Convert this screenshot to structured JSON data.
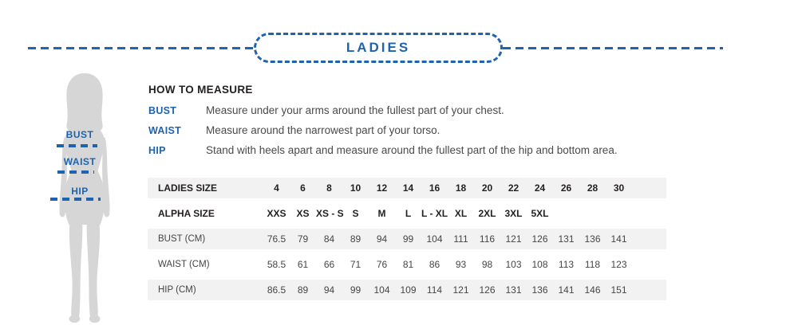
{
  "colors": {
    "accent_blue": "#1f63ae",
    "silhouette_gray": "#d6d6d6",
    "row_stripe_gray": "#f2f2f2",
    "heading_black": "#231f20",
    "body_gray": "#4a4a4a"
  },
  "divider": {
    "label": "LADIES"
  },
  "figure": {
    "silhouette_icon": "woman-silhouette-icon",
    "bust_label": "BUST",
    "waist_label": "WAIST",
    "hip_label": "HIP"
  },
  "how_to_measure": {
    "heading": "HOW TO MEASURE",
    "items": [
      {
        "label": "BUST",
        "text": "Measure under your arms around the fullest part of your chest."
      },
      {
        "label": "WAIST",
        "text": "Measure around the narrowest part of your torso."
      },
      {
        "label": "HIP",
        "text": "Stand with heels apart and measure around the fullest part of the hip and bottom area."
      }
    ]
  },
  "chart_data": {
    "type": "table",
    "title": "LADIES",
    "header_row": {
      "label": "LADIES SIZE",
      "values": [
        "4",
        "6",
        "8",
        "10",
        "12",
        "14",
        "16",
        "18",
        "20",
        "22",
        "24",
        "26",
        "28",
        "30"
      ]
    },
    "rows": [
      {
        "label": "ALPHA SIZE",
        "bold": true,
        "values": [
          "XXS",
          "XS",
          "XS - S",
          "S",
          "M",
          "L",
          "L - XL",
          "XL",
          "2XL",
          "3XL",
          "5XL",
          "",
          "",
          ""
        ]
      },
      {
        "label": "BUST (CM)",
        "bold": false,
        "values": [
          "76.5",
          "79",
          "84",
          "89",
          "94",
          "99",
          "104",
          "111",
          "116",
          "121",
          "126",
          "131",
          "136",
          "141"
        ]
      },
      {
        "label": "WAIST (CM)",
        "bold": false,
        "values": [
          "58.5",
          "61",
          "66",
          "71",
          "76",
          "81",
          "86",
          "93",
          "98",
          "103",
          "108",
          "113",
          "118",
          "123"
        ]
      },
      {
        "label": "HIP (CM)",
        "bold": false,
        "values": [
          "86.5",
          "89",
          "94",
          "99",
          "104",
          "109",
          "114",
          "121",
          "126",
          "131",
          "136",
          "141",
          "146",
          "151"
        ]
      }
    ]
  }
}
